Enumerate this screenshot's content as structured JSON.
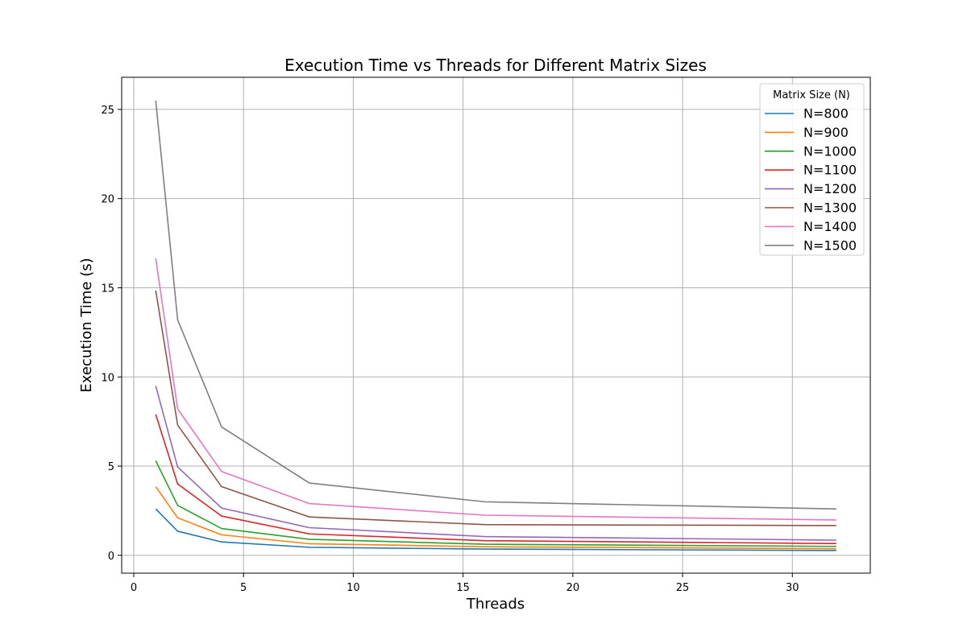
{
  "chart_data": {
    "type": "line",
    "title": "Execution Time vs Threads for Different Matrix Sizes",
    "xlabel": "Threads",
    "ylabel": "Execution Time (s)",
    "xlim": [
      -0.55,
      33.55
    ],
    "ylim": [
      -1.0,
      26.8
    ],
    "xticks": [
      0,
      5,
      10,
      15,
      20,
      25,
      30
    ],
    "yticks": [
      0,
      5,
      10,
      15,
      20,
      25
    ],
    "grid": true,
    "legend_title": "Matrix Size (N)",
    "legend_position": "top-right",
    "x": [
      1,
      2,
      4,
      8,
      16,
      32
    ],
    "series": [
      {
        "name": "N=800",
        "color": "#1f77b4",
        "values": [
          2.6,
          1.35,
          0.75,
          0.45,
          0.35,
          0.27
        ]
      },
      {
        "name": "N=900",
        "color": "#ff7f0e",
        "values": [
          3.85,
          2.1,
          1.15,
          0.65,
          0.48,
          0.37
        ]
      },
      {
        "name": "N=1000",
        "color": "#2ca02c",
        "values": [
          5.3,
          2.8,
          1.5,
          0.9,
          0.62,
          0.5
        ]
      },
      {
        "name": "N=1100",
        "color": "#d62728",
        "values": [
          7.9,
          4.0,
          2.2,
          1.2,
          0.82,
          0.66
        ]
      },
      {
        "name": "N=1200",
        "color": "#9467bd",
        "values": [
          9.5,
          4.95,
          2.65,
          1.55,
          1.05,
          0.85
        ]
      },
      {
        "name": "N=1300",
        "color": "#8c564b",
        "values": [
          14.85,
          7.3,
          3.85,
          2.15,
          1.72,
          1.67
        ]
      },
      {
        "name": "N=1400",
        "color": "#e377c2",
        "values": [
          16.65,
          8.2,
          4.7,
          2.9,
          2.25,
          1.98
        ]
      },
      {
        "name": "N=1500",
        "color": "#7f7f7f",
        "values": [
          25.5,
          13.2,
          7.2,
          4.05,
          3.0,
          2.6
        ]
      }
    ]
  }
}
